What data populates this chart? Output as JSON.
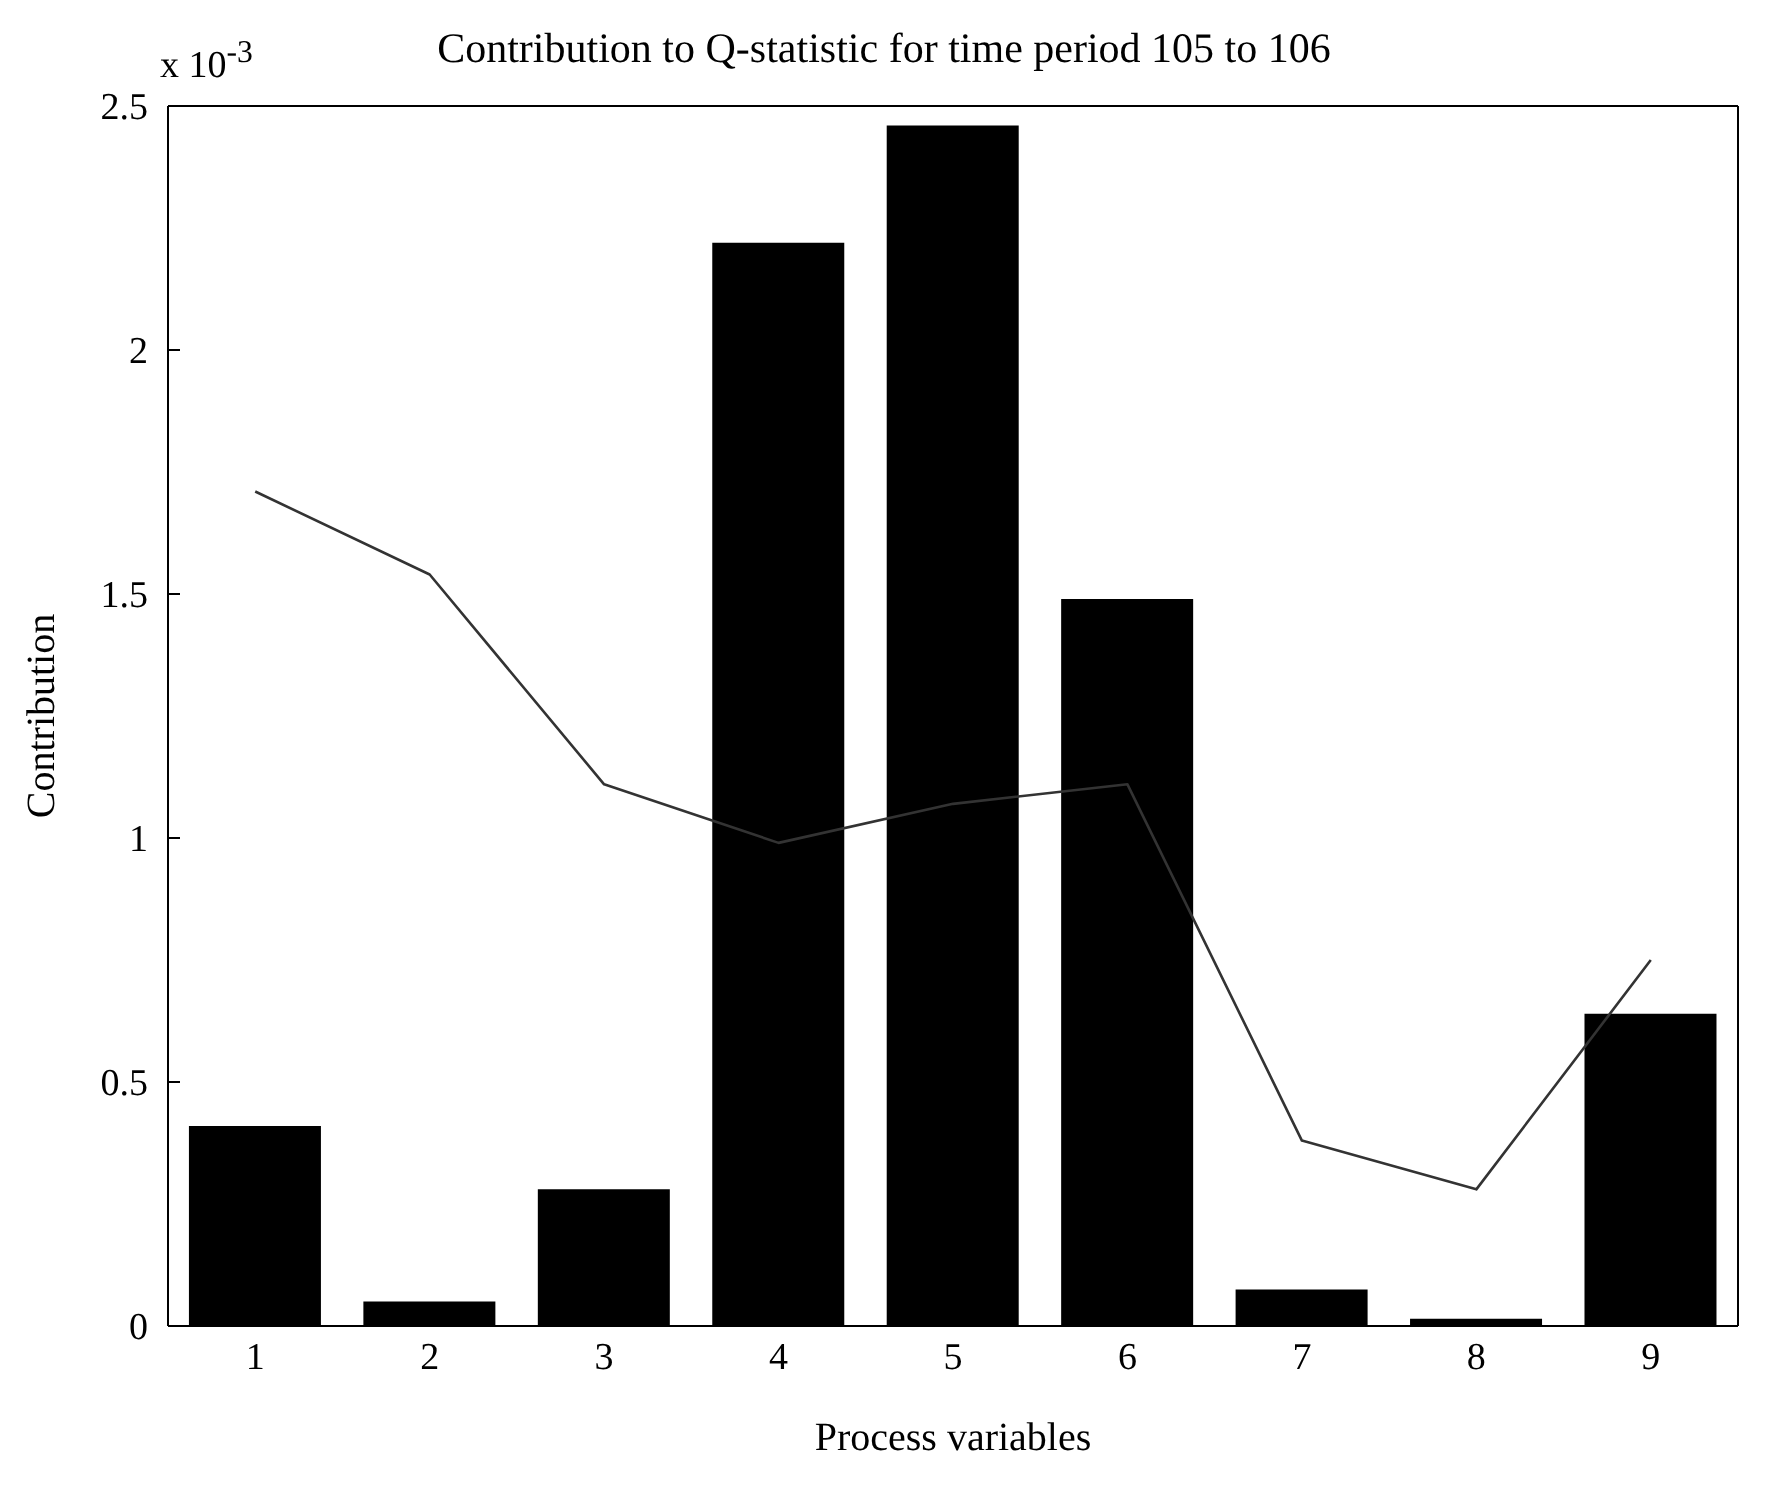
{
  "chart_data": {
    "type": "bar",
    "title": "Contribution to Q-statistic for time period 105 to 106",
    "xlabel": "Process variables",
    "ylabel": "Contribution",
    "annotations": [
      "x 10$^{-3}$"
    ],
    "categories": [
      "1",
      "2",
      "3",
      "4",
      "5",
      "6",
      "7",
      "8",
      "9"
    ],
    "series": [
      {
        "color": "#000000",
        "values": [
          0.41,
          0.05,
          0.28,
          2.22,
          2.46,
          1.49,
          0.075,
          0.015,
          0.64
        ]
      },
      {
        "type": "line",
        "color": "#333333",
        "values": [
          1.71,
          1.54,
          1.11,
          0.99,
          1.07,
          1.11,
          0.38,
          0.28,
          0.75
        ]
      }
    ],
    "ylim": [
      0,
      2.5
    ],
    "yticks": [
      0,
      0.5,
      1,
      1.5,
      2,
      2.5
    ],
    "grid": false,
    "legend": false
  }
}
